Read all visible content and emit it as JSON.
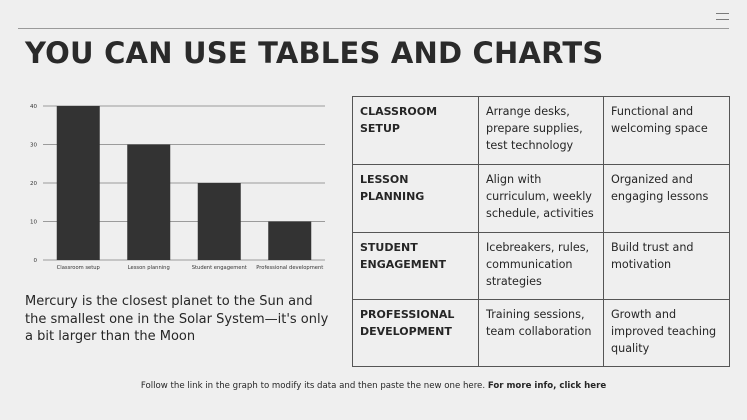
{
  "slide": {
    "title": "YOU CAN USE TABLES AND CHARTS",
    "body_text": "Mercury is the closest planet to the Sun and the smallest one in the Solar System—it's only a bit larger than the Moon",
    "footer_text": "Follow the link in the graph to modify its data and then paste the new one here.",
    "footer_link": "For more info, click here"
  },
  "chart_data": {
    "type": "bar",
    "categories": [
      "Classroom setup",
      "Lesson planning",
      "Student engagement",
      "Professional development"
    ],
    "values": [
      40,
      30,
      20,
      10
    ],
    "ylim": [
      0,
      40
    ],
    "yticks": [
      0,
      10,
      20,
      30,
      40
    ],
    "grid": true,
    "bar_color": "#333333"
  },
  "table": {
    "rows": [
      {
        "category": "CLASSROOM SETUP",
        "tasks": "Arrange desks, prepare supplies, test technology",
        "outcome": "Functional and welcoming space"
      },
      {
        "category": "LESSON PLANNING",
        "tasks": "Align with curriculum, weekly schedule, activities",
        "outcome": "Organized and engaging lessons"
      },
      {
        "category": "STUDENT ENGAGEMENT",
        "tasks": "Icebreakers, rules, communication strategies",
        "outcome": "Build trust and motivation"
      },
      {
        "category": "PROFESSIONAL DEVELOPMENT",
        "tasks": "Training sessions, team collaboration",
        "outcome": "Growth and improved teaching quality"
      }
    ]
  }
}
